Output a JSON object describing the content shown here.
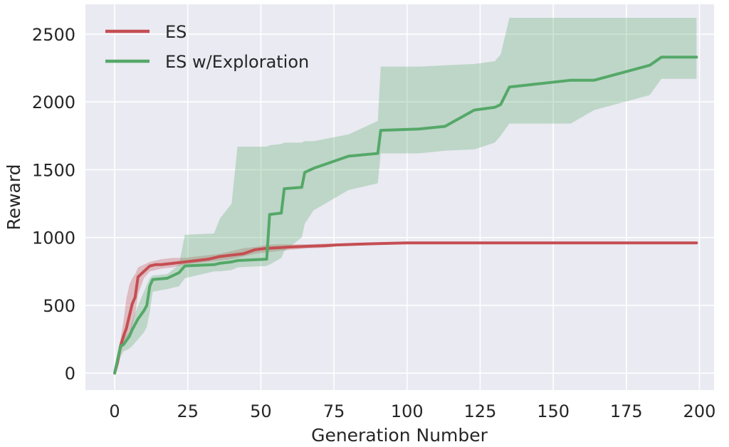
{
  "chart_data": {
    "type": "line",
    "xlabel": "Generation Number",
    "ylabel": "Reward",
    "xlim": [
      -10,
      205
    ],
    "ylim": [
      -125,
      2720
    ],
    "x_ticks": [
      0,
      25,
      50,
      75,
      100,
      125,
      150,
      175,
      200
    ],
    "y_ticks": [
      0,
      500,
      1000,
      1500,
      2000,
      2500
    ],
    "grid": true,
    "legend_position": "top-left",
    "series": [
      {
        "name": "ES",
        "color": "#c44e52",
        "band_color": "#c44e52",
        "x": [
          0,
          1,
          2,
          3,
          4,
          5,
          6,
          7,
          8,
          10,
          12,
          14,
          16,
          20,
          24,
          28,
          32,
          36,
          40,
          44,
          48,
          52,
          56,
          60,
          66,
          72,
          76,
          82,
          90,
          96,
          100,
          199
        ],
        "y": [
          0,
          80,
          200,
          270,
          330,
          420,
          510,
          560,
          710,
          750,
          790,
          800,
          800,
          810,
          820,
          830,
          840,
          860,
          870,
          880,
          910,
          920,
          925,
          930,
          935,
          940,
          945,
          950,
          955,
          958,
          960,
          960
        ],
        "lower": [
          0,
          40,
          150,
          200,
          230,
          280,
          350,
          430,
          580,
          700,
          750,
          760,
          770,
          780,
          800,
          810,
          820,
          830,
          840,
          860,
          880,
          890,
          900,
          910,
          920,
          925,
          935,
          940,
          945,
          955,
          958,
          958
        ],
        "upper": [
          0,
          140,
          250,
          380,
          550,
          650,
          700,
          730,
          780,
          800,
          820,
          830,
          840,
          850,
          850,
          860,
          870,
          880,
          900,
          920,
          930,
          945,
          950,
          950,
          950,
          955,
          955,
          960,
          962,
          962,
          962,
          962
        ]
      },
      {
        "name": "ES w/Exploration",
        "color": "#55a868",
        "band_color": "#55a868",
        "x": [
          0,
          2,
          3,
          5,
          6,
          8,
          10,
          11,
          12,
          13,
          18,
          22,
          24,
          34,
          36,
          40,
          42,
          52,
          53,
          57,
          58,
          64,
          65,
          68,
          80,
          90,
          91,
          104,
          113,
          123,
          130,
          132,
          135,
          156,
          164,
          183,
          187,
          199
        ],
        "y": [
          0,
          200,
          210,
          270,
          320,
          400,
          460,
          500,
          640,
          690,
          700,
          740,
          790,
          800,
          810,
          820,
          830,
          840,
          1170,
          1180,
          1360,
          1370,
          1480,
          1510,
          1600,
          1620,
          1790,
          1800,
          1820,
          1940,
          1960,
          1980,
          2110,
          2160,
          2160,
          2270,
          2330,
          2330
        ],
        "lower": [
          0,
          120,
          160,
          180,
          200,
          250,
          300,
          340,
          450,
          600,
          620,
          640,
          700,
          750,
          750,
          760,
          780,
          790,
          800,
          850,
          900,
          1000,
          1100,
          1200,
          1350,
          1400,
          1620,
          1620,
          1640,
          1650,
          1700,
          1750,
          1840,
          1840,
          1940,
          2050,
          2170,
          2170
        ],
        "upper": [
          0,
          220,
          260,
          300,
          380,
          500,
          600,
          650,
          700,
          720,
          730,
          800,
          1020,
          1030,
          1140,
          1250,
          1670,
          1670,
          1680,
          1690,
          1700,
          1700,
          1710,
          1710,
          1760,
          1860,
          2260,
          2260,
          2270,
          2280,
          2300,
          2350,
          2620,
          2620,
          2620,
          2620,
          2620,
          2620
        ]
      }
    ]
  }
}
